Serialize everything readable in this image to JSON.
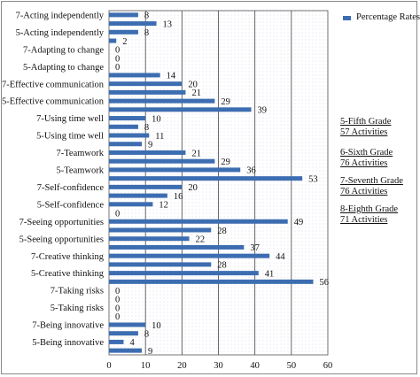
{
  "chart_data": {
    "type": "bar",
    "orientation": "horizontal",
    "categories": [
      "7-Acting independently",
      "",
      "5-Acting independently",
      "",
      "7-Adapting to change",
      "",
      "5-Adapting to change",
      "",
      "7-Effective communication",
      "",
      "5-Effective communication",
      "",
      "7-Using time well",
      "",
      "5-Using time well",
      "",
      "7-Teamwork",
      "",
      "5-Teamwork",
      "",
      "7-Self-confidence",
      "",
      "5-Self-confidence",
      "",
      "7-Seeing opportunities",
      "",
      "5-Seeing opportunities",
      "",
      "7-Creative thinking",
      "",
      "5-Creative thinking",
      "",
      "7-Taking risks",
      "",
      "5-Taking risks",
      "",
      "7-Being innovative",
      "",
      "5-Being innovative",
      ""
    ],
    "values": [
      8,
      13,
      8,
      2,
      0,
      0,
      0,
      14,
      20,
      21,
      29,
      39,
      10,
      8,
      11,
      9,
      21,
      29,
      36,
      53,
      20,
      16,
      12,
      0,
      49,
      28,
      22,
      37,
      44,
      28,
      41,
      56,
      0,
      0,
      0,
      0,
      10,
      8,
      4,
      9
    ],
    "value_labels": [
      "8",
      "13",
      "8",
      "2",
      "0",
      "0",
      "0",
      "14",
      "20",
      "21",
      "29",
      "39",
      "10",
      "8",
      "11",
      "9",
      "21",
      "29",
      "36",
      "53",
      "20",
      "16",
      "12",
      "0",
      "49",
      "28",
      "22",
      "37",
      "44",
      "28",
      "41",
      "56",
      "0",
      "0",
      "0",
      "0",
      "10",
      "8",
      "4",
      "9"
    ],
    "xlim": [
      0,
      60
    ],
    "xticks": [
      "0",
      "10",
      "20",
      "30",
      "40",
      "50",
      "60"
    ],
    "grid": true,
    "bar_color": "#3d6db1",
    "legend": {
      "label": "Percentage Rates",
      "placement": "top-right"
    },
    "annotations": [
      [
        "5-Fifth Grade",
        "57 Activities"
      ],
      [
        "6-Sixth Grade",
        "76 Activities"
      ],
      [
        "7-Seventh Grade",
        "76 Activities"
      ],
      [
        "8-Eighth Grade",
        "71 Activities"
      ]
    ]
  }
}
